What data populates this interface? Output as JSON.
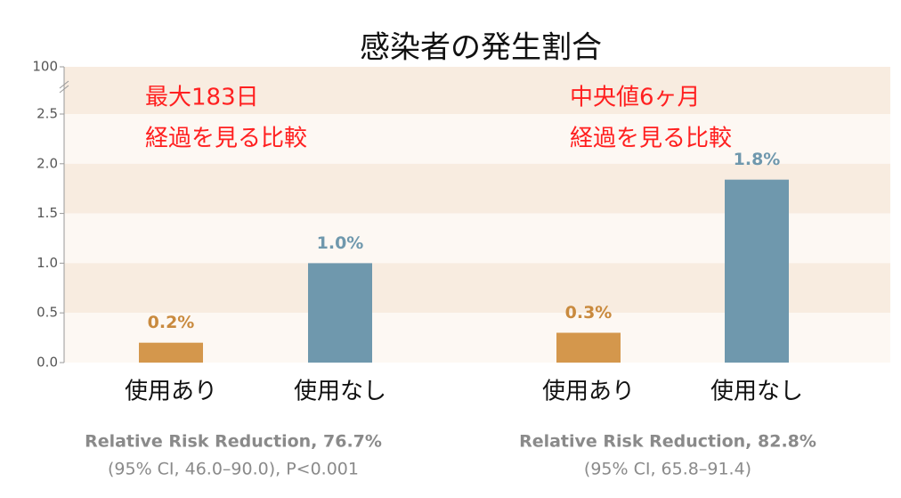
{
  "chart_data": {
    "type": "bar",
    "title": "感染者の発生割合",
    "categories": [
      "使用あり",
      "使用なし",
      "使用あり",
      "使用なし"
    ],
    "values": [
      0.2,
      1.0,
      0.3,
      1.84
    ],
    "value_labels": [
      "0.2%",
      "1.0%",
      "0.3%",
      "1.8%"
    ],
    "colors": [
      "#d4974c",
      "#6f98ad",
      "#d4974c",
      "#6f98ad"
    ],
    "label_colors": [
      "#c98a3e",
      "#6f98ad",
      "#c98a3e",
      "#6f98ad"
    ],
    "ylim": [
      0,
      2.5
    ],
    "yticks": [
      {
        "value": 0,
        "label": "0.0"
      },
      {
        "value": 0.5,
        "label": "0.5"
      },
      {
        "value": 1,
        "label": "1.0"
      },
      {
        "value": 1.5,
        "label": "1.5"
      },
      {
        "value": 2,
        "label": "2.0"
      },
      {
        "value": 2.5,
        "label": "2.5"
      }
    ],
    "break_tick": 100,
    "annotations": [
      [
        "最大183日",
        "経過を見る比較"
      ],
      [
        "中央値6ヶ月",
        "経過を見る比較"
      ]
    ],
    "footnotes": [
      [
        "Relative Risk Reduction, 76.7%",
        "(95% CI, 46.0–90.0), P<0.001"
      ],
      [
        "Relative Risk Reduction, 82.8%",
        "(95% CI, 65.8–91.4)"
      ]
    ]
  }
}
